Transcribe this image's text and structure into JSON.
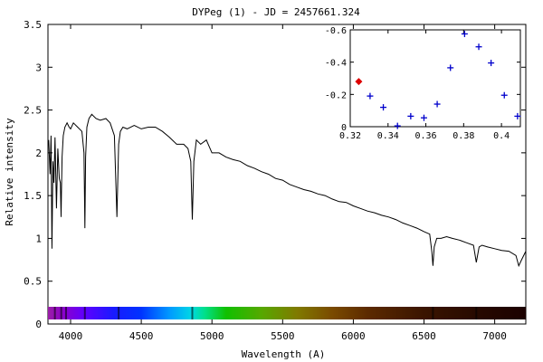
{
  "chart_data": [
    {
      "type": "line",
      "title": "DYPeg (1) - JD = 2457661.324",
      "xlabel": "Wavelength (A)",
      "ylabel": "Relative intensity",
      "xlim": [
        3840,
        7220
      ],
      "ylim": [
        0,
        3.5
      ],
      "xticks": [
        "4000",
        "4500",
        "5000",
        "5500",
        "6000",
        "6500",
        "7000"
      ],
      "yticks": [
        "0",
        "0.5",
        "1",
        "1.5",
        "2",
        "2.5",
        "3",
        "3.5"
      ],
      "grid": false,
      "spectrum_bar": true,
      "series": [
        {
          "color": "#000000",
          "x": [
            3845,
            3855,
            3862,
            3868,
            3875,
            3882,
            3890,
            3900,
            3910,
            3920,
            3928,
            3933,
            3936,
            3940,
            3948,
            3960,
            3975,
            3990,
            4000,
            4020,
            4050,
            4080,
            4095,
            4101,
            4106,
            4115,
            4130,
            4150,
            4180,
            4210,
            4250,
            4280,
            4310,
            4328,
            4340,
            4352,
            4370,
            4400,
            4450,
            4500,
            4550,
            4600,
            4650,
            4700,
            4750,
            4800,
            4830,
            4850,
            4861,
            4872,
            4890,
            4920,
            4960,
            5000,
            5050,
            5100,
            5150,
            5200,
            5250,
            5300,
            5350,
            5400,
            5450,
            5500,
            5550,
            5600,
            5650,
            5700,
            5750,
            5800,
            5850,
            5900,
            5950,
            6000,
            6050,
            6100,
            6150,
            6200,
            6250,
            6300,
            6350,
            6400,
            6450,
            6500,
            6540,
            6555,
            6563,
            6572,
            6590,
            6620,
            6660,
            6700,
            6750,
            6800,
            6850,
            6870,
            6890,
            6910,
            6950,
            7000,
            7050,
            7100,
            7150,
            7170,
            7190,
            7220
          ],
          "y": [
            2.15,
            1.75,
            2.2,
            0.88,
            1.9,
            1.65,
            2.18,
            1.35,
            2.05,
            1.7,
            1.65,
            1.25,
            1.6,
            1.95,
            2.2,
            2.3,
            2.35,
            2.3,
            2.28,
            2.35,
            2.3,
            2.25,
            2.0,
            1.12,
            1.95,
            2.3,
            2.4,
            2.45,
            2.4,
            2.38,
            2.4,
            2.35,
            2.2,
            1.25,
            2.1,
            2.25,
            2.3,
            2.28,
            2.32,
            2.28,
            2.3,
            2.3,
            2.25,
            2.18,
            2.1,
            2.1,
            2.05,
            1.9,
            1.22,
            1.9,
            2.15,
            2.1,
            2.15,
            2.0,
            2.0,
            1.95,
            1.92,
            1.9,
            1.85,
            1.82,
            1.78,
            1.75,
            1.7,
            1.68,
            1.63,
            1.6,
            1.57,
            1.55,
            1.52,
            1.5,
            1.46,
            1.43,
            1.42,
            1.38,
            1.35,
            1.32,
            1.3,
            1.27,
            1.25,
            1.22,
            1.18,
            1.15,
            1.12,
            1.08,
            1.05,
            0.85,
            0.68,
            0.9,
            1.0,
            1.0,
            1.02,
            1.0,
            0.98,
            0.95,
            0.92,
            0.72,
            0.9,
            0.92,
            0.9,
            0.88,
            0.86,
            0.85,
            0.8,
            0.68,
            0.75,
            0.85
          ]
        }
      ]
    },
    {
      "type": "scatter",
      "xlim": [
        0.32,
        0.41
      ],
      "ylim": [
        0,
        -0.6
      ],
      "y_inverted": true,
      "xticks": [
        "0.32",
        "0.34",
        "0.36",
        "0.38",
        "0.4"
      ],
      "yticks": [
        "0",
        "-0.2",
        "-0.4",
        "-0.6"
      ],
      "grid": false,
      "series": [
        {
          "marker": "plus",
          "color": "#0000cc",
          "x": [
            0.3305,
            0.3375,
            0.345,
            0.352,
            0.359,
            0.366,
            0.373,
            0.3805,
            0.388,
            0.3945,
            0.4015,
            0.4085
          ],
          "y": [
            -0.19,
            -0.12,
            -0.005,
            -0.065,
            -0.055,
            -0.14,
            -0.365,
            -0.575,
            -0.495,
            -0.395,
            -0.195,
            -0.065
          ]
        },
        {
          "marker": "diamond",
          "color": "#dd0000",
          "x": [
            0.3245
          ],
          "y": [
            -0.28
          ]
        }
      ]
    }
  ]
}
